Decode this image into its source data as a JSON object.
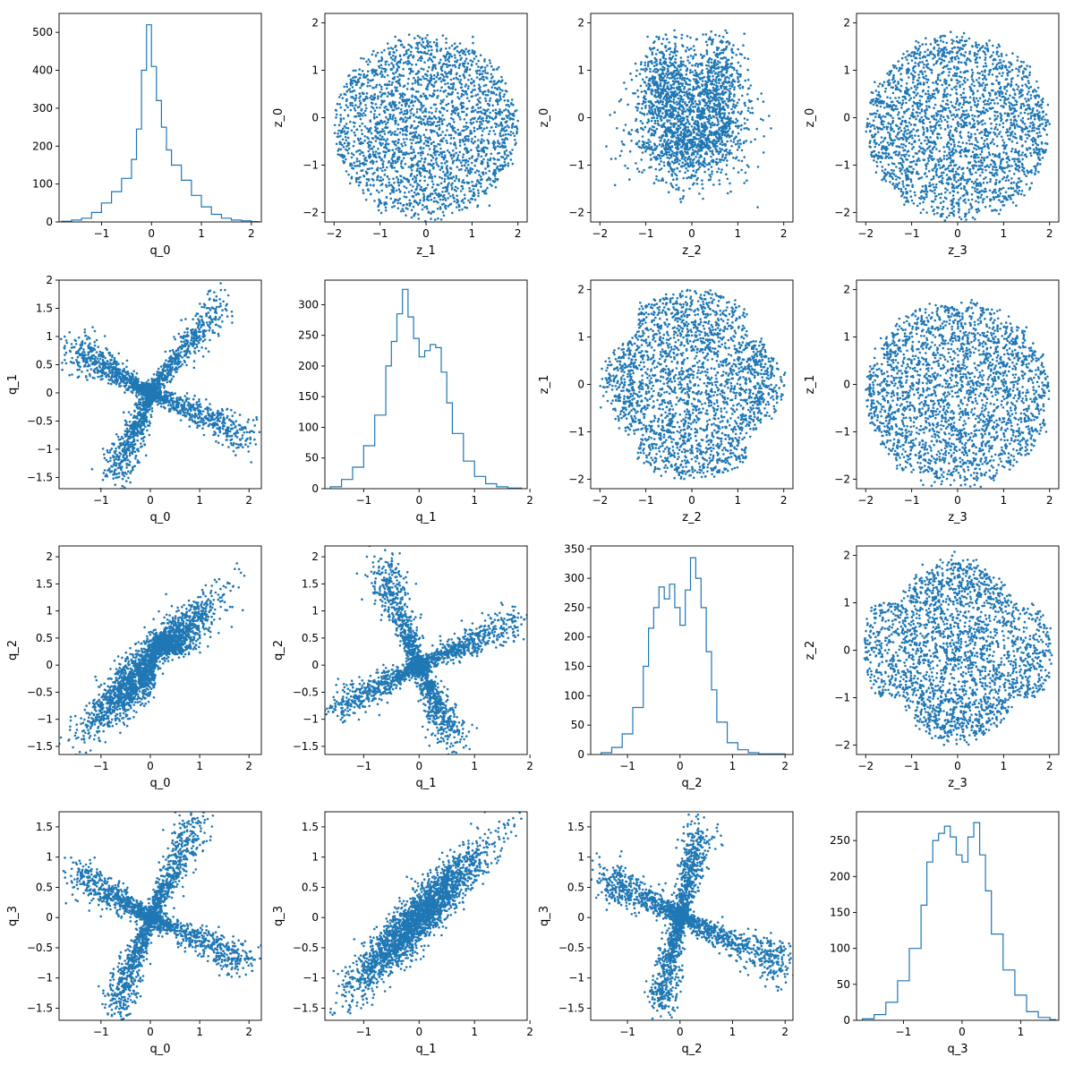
{
  "figure": {
    "description": "4x4 corner/pair plot of q and z variables"
  },
  "style": {
    "series_color": "#1f77b4",
    "axes_color": "#000000"
  },
  "chart_data": [
    {
      "type": "histogram",
      "row": 0,
      "col": 0,
      "xlabel": "q_0",
      "ylabel": "",
      "xlim": [
        -1.85,
        2.2
      ],
      "ylim": [
        0,
        550
      ],
      "xticks": [
        -1,
        0,
        1,
        2
      ],
      "yticks": [
        0,
        100,
        200,
        300,
        400,
        500
      ],
      "bins_x": [
        -1.8,
        -1.6,
        -1.4,
        -1.2,
        -1.0,
        -0.8,
        -0.6,
        -0.4,
        -0.3,
        -0.2,
        -0.1,
        0.0,
        0.1,
        0.2,
        0.3,
        0.4,
        0.6,
        0.8,
        1.0,
        1.2,
        1.4,
        1.6,
        1.8,
        2.0,
        2.15
      ],
      "values": [
        2,
        5,
        10,
        25,
        50,
        80,
        115,
        165,
        245,
        400,
        520,
        410,
        320,
        250,
        190,
        150,
        110,
        70,
        40,
        20,
        10,
        5,
        3,
        1
      ]
    },
    {
      "type": "scatter",
      "row": 0,
      "col": 1,
      "xlabel": "z_1",
      "ylabel": "z_0",
      "xlim": [
        -2.2,
        2.2
      ],
      "ylim": [
        -2.2,
        2.2
      ],
      "xticks": [
        -2,
        -1,
        0,
        1,
        2
      ],
      "yticks": [
        -2,
        -1,
        0,
        1,
        2
      ],
      "shape": "disk_z",
      "points": 2400,
      "radius": 2.0
    },
    {
      "type": "scatter",
      "row": 0,
      "col": 2,
      "xlabel": "z_2",
      "ylabel": "z_0",
      "xlim": [
        -2.2,
        2.2
      ],
      "ylim": [
        -2.2,
        2.2
      ],
      "xticks": [
        -2,
        -1,
        0,
        1,
        2
      ],
      "yticks": [
        -2,
        -1,
        0,
        1,
        2
      ],
      "shape": "z2_z0",
      "points": 2200
    },
    {
      "type": "scatter",
      "row": 0,
      "col": 3,
      "xlabel": "z_3",
      "ylabel": "z_0",
      "xlim": [
        -2.2,
        2.2
      ],
      "ylim": [
        -2.2,
        2.2
      ],
      "xticks": [
        -2,
        -1,
        0,
        1,
        2
      ],
      "yticks": [
        -2,
        -1,
        0,
        1,
        2
      ],
      "shape": "disk_z",
      "points": 2400,
      "radius": 2.0
    },
    {
      "type": "scatter",
      "row": 1,
      "col": 0,
      "xlabel": "q_0",
      "ylabel": "q_1",
      "xlim": [
        -1.85,
        2.25
      ],
      "ylim": [
        -1.7,
        2.0
      ],
      "xticks": [
        -1,
        0,
        1,
        2
      ],
      "yticks": [
        -1.5,
        -1.0,
        -0.5,
        0.0,
        0.5,
        1.0,
        1.5,
        2.0
      ],
      "shape": "cross",
      "arms": [
        [
          -1.6,
          0.8
        ],
        [
          1.4,
          1.6
        ],
        [
          2.0,
          -0.75
        ],
        [
          -0.7,
          -1.5
        ]
      ],
      "points": 2400
    },
    {
      "type": "histogram",
      "row": 1,
      "col": 1,
      "xlabel": "q_1",
      "ylabel": "",
      "xlim": [
        -1.7,
        1.95
      ],
      "ylim": [
        0,
        340
      ],
      "xticks": [
        -1,
        0,
        1,
        2
      ],
      "yticks": [
        0,
        50,
        100,
        150,
        200,
        250,
        300
      ],
      "bins_x": [
        -1.6,
        -1.4,
        -1.2,
        -1.0,
        -0.8,
        -0.6,
        -0.5,
        -0.4,
        -0.3,
        -0.2,
        -0.1,
        0.0,
        0.1,
        0.2,
        0.3,
        0.4,
        0.5,
        0.6,
        0.8,
        1.0,
        1.2,
        1.4,
        1.6,
        1.85
      ],
      "values": [
        3,
        15,
        35,
        70,
        120,
        200,
        240,
        285,
        325,
        280,
        245,
        215,
        225,
        235,
        230,
        190,
        140,
        90,
        45,
        20,
        8,
        3,
        1
      ]
    },
    {
      "type": "scatter",
      "row": 1,
      "col": 2,
      "xlabel": "z_2",
      "ylabel": "z_1",
      "xlim": [
        -2.2,
        2.2
      ],
      "ylim": [
        -2.2,
        2.2
      ],
      "xticks": [
        -2,
        -1,
        0,
        1,
        2
      ],
      "yticks": [
        -2,
        -1,
        0,
        1,
        2
      ],
      "shape": "oval_z",
      "points": 2400
    },
    {
      "type": "scatter",
      "row": 1,
      "col": 3,
      "xlabel": "z_3",
      "ylabel": "z_1",
      "xlim": [
        -2.2,
        2.2
      ],
      "ylim": [
        -2.2,
        2.2
      ],
      "xticks": [
        -2,
        -1,
        0,
        1,
        2
      ],
      "yticks": [
        -2,
        -1,
        0,
        1,
        2
      ],
      "shape": "disk_z",
      "points": 2400,
      "radius": 2.0
    },
    {
      "type": "scatter",
      "row": 2,
      "col": 0,
      "xlabel": "q_0",
      "ylabel": "q_2",
      "xlim": [
        -1.85,
        2.25
      ],
      "ylim": [
        -1.65,
        2.2
      ],
      "xticks": [
        -1,
        0,
        1,
        2
      ],
      "yticks": [
        -1.5,
        -1.0,
        -0.5,
        0.0,
        0.5,
        1.0,
        1.5,
        2.0
      ],
      "shape": "diag",
      "points": 2400
    },
    {
      "type": "scatter",
      "row": 2,
      "col": 1,
      "xlabel": "q_1",
      "ylabel": "q_2",
      "xlim": [
        -1.7,
        1.95
      ],
      "ylim": [
        -1.65,
        2.2
      ],
      "xticks": [
        -1,
        0,
        1,
        2
      ],
      "yticks": [
        -1.5,
        -1.0,
        -0.5,
        0.0,
        0.5,
        1.0,
        1.5,
        2.0
      ],
      "shape": "cross",
      "arms": [
        [
          -0.7,
          1.9
        ],
        [
          1.7,
          0.8
        ],
        [
          0.6,
          -1.4
        ],
        [
          -1.5,
          -0.8
        ]
      ],
      "points": 2400
    },
    {
      "type": "histogram",
      "row": 2,
      "col": 2,
      "xlabel": "q_2",
      "ylabel": "",
      "xlim": [
        -1.7,
        2.15
      ],
      "ylim": [
        0,
        355
      ],
      "xticks": [
        -1,
        0,
        1,
        2
      ],
      "yticks": [
        0,
        50,
        100,
        150,
        200,
        250,
        300,
        350
      ],
      "bins_x": [
        -1.5,
        -1.3,
        -1.1,
        -0.9,
        -0.7,
        -0.6,
        -0.5,
        -0.4,
        -0.3,
        -0.2,
        -0.1,
        0.0,
        0.1,
        0.2,
        0.3,
        0.4,
        0.5,
        0.6,
        0.7,
        0.9,
        1.1,
        1.3,
        1.5,
        1.7,
        2.0
      ],
      "values": [
        3,
        12,
        35,
        80,
        150,
        215,
        250,
        285,
        265,
        290,
        250,
        220,
        280,
        335,
        300,
        250,
        175,
        110,
        55,
        20,
        8,
        3,
        1,
        1
      ]
    },
    {
      "type": "scatter",
      "row": 2,
      "col": 3,
      "xlabel": "z_3",
      "ylabel": "z_2",
      "xlim": [
        -2.2,
        2.2
      ],
      "ylim": [
        -2.2,
        2.2
      ],
      "xticks": [
        -2,
        -1,
        0,
        1,
        2
      ],
      "yticks": [
        -2,
        -1,
        0,
        1,
        2
      ],
      "shape": "wide_oval",
      "points": 2400
    },
    {
      "type": "scatter",
      "row": 3,
      "col": 0,
      "xlabel": "q_0",
      "ylabel": "q_3",
      "xlim": [
        -1.85,
        2.25
      ],
      "ylim": [
        -1.7,
        1.75
      ],
      "xticks": [
        -1,
        0,
        1,
        2
      ],
      "yticks": [
        -1.5,
        -1.0,
        -0.5,
        0.0,
        0.5,
        1.0,
        1.5
      ],
      "shape": "cross",
      "arms": [
        [
          -1.6,
          0.75
        ],
        [
          0.9,
          1.55
        ],
        [
          2.0,
          -0.75
        ],
        [
          -0.7,
          -1.5
        ]
      ],
      "points": 2400
    },
    {
      "type": "scatter",
      "row": 3,
      "col": 1,
      "xlabel": "q_1",
      "ylabel": "q_3",
      "xlim": [
        -1.7,
        1.95
      ],
      "ylim": [
        -1.7,
        1.75
      ],
      "xticks": [
        -1,
        0,
        1,
        2
      ],
      "yticks": [
        -1.5,
        -1.0,
        -0.5,
        0.0,
        0.5,
        1.0,
        1.5
      ],
      "shape": "diag2",
      "points": 2400
    },
    {
      "type": "scatter",
      "row": 3,
      "col": 2,
      "xlabel": "q_2",
      "ylabel": "q_3",
      "xlim": [
        -1.7,
        2.15
      ],
      "ylim": [
        -1.7,
        1.75
      ],
      "xticks": [
        -1,
        0,
        1,
        2
      ],
      "yticks": [
        -1.5,
        -1.0,
        -0.5,
        0.0,
        0.5,
        1.0,
        1.5
      ],
      "shape": "cross",
      "arms": [
        [
          -1.5,
          0.7
        ],
        [
          0.4,
          1.5
        ],
        [
          2.0,
          -0.8
        ],
        [
          -0.4,
          -1.5
        ]
      ],
      "points": 2400
    },
    {
      "type": "histogram",
      "row": 3,
      "col": 3,
      "xlabel": "q_3",
      "ylabel": "",
      "xlim": [
        -1.8,
        1.65
      ],
      "ylim": [
        0,
        290
      ],
      "xticks": [
        -1,
        0,
        1
      ],
      "yticks": [
        0,
        50,
        100,
        150,
        200,
        250
      ],
      "bins_x": [
        -1.7,
        -1.5,
        -1.3,
        -1.1,
        -0.9,
        -0.7,
        -0.6,
        -0.5,
        -0.4,
        -0.3,
        -0.2,
        -0.1,
        0.0,
        0.1,
        0.2,
        0.3,
        0.4,
        0.5,
        0.7,
        0.9,
        1.1,
        1.3,
        1.5,
        1.6
      ],
      "values": [
        2,
        8,
        25,
        55,
        100,
        160,
        220,
        250,
        260,
        270,
        255,
        230,
        220,
        255,
        275,
        230,
        180,
        120,
        70,
        35,
        12,
        4,
        1
      ]
    }
  ]
}
